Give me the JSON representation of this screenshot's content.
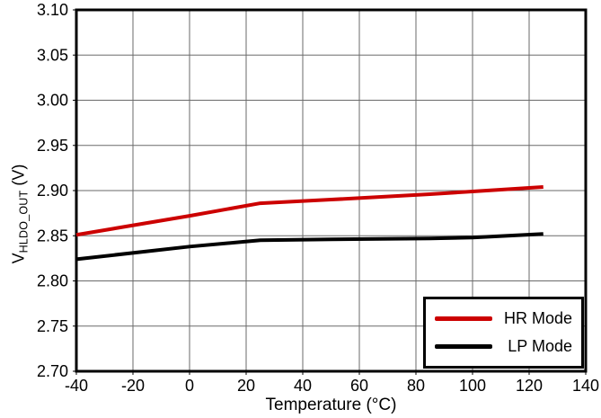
{
  "style": {
    "background": "#ffffff",
    "grid_color": "#6a6a6a",
    "frame_color": "#000000",
    "tick_label_color": "#000000",
    "accent_red": "#cc0000",
    "accent_black": "#000000"
  },
  "axes": {
    "y": {
      "label_prefix": "V",
      "label_subscript": "HLDO_OUT",
      "label_suffix": " (V)"
    }
  },
  "chart_data": {
    "type": "line",
    "title": "",
    "xlabel": "Temperature (°C)",
    "ylabel": "VHLDO_OUT (V)",
    "xlim": [
      -40,
      140
    ],
    "ylim": [
      2.7,
      3.1
    ],
    "x_ticks": [
      -40,
      -20,
      0,
      20,
      40,
      60,
      80,
      100,
      120,
      140
    ],
    "y_ticks": [
      2.7,
      2.75,
      2.8,
      2.85,
      2.9,
      2.95,
      3.0,
      3.05,
      3.1
    ],
    "grid": true,
    "legend_position": "lower right",
    "series": [
      {
        "name": "HR Mode",
        "color": "#cc0000",
        "x": [
          -40,
          0,
          25,
          50,
          85,
          100,
          125
        ],
        "y": [
          2.851,
          2.872,
          2.886,
          2.89,
          2.896,
          2.899,
          2.904
        ]
      },
      {
        "name": "LP Mode",
        "color": "#000000",
        "x": [
          -40,
          0,
          25,
          50,
          85,
          100,
          125
        ],
        "y": [
          2.824,
          2.838,
          2.845,
          2.846,
          2.847,
          2.848,
          2.852
        ]
      }
    ]
  }
}
